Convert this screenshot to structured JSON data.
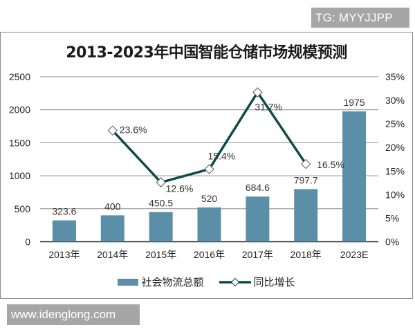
{
  "watermarks": {
    "top_right": "TG: MYYJJPP",
    "bottom_left": "www.idenglong.com"
  },
  "colors": {
    "bar": "#5b8fa8",
    "line": "#0f4a4a",
    "grid": "#8c8c8c",
    "badge_bg": "#a6a6a6"
  },
  "chart_data": {
    "type": "bar+line",
    "title": "2013-2023年中国智能仓储市场规模预测",
    "categories": [
      "2013年",
      "2014年",
      "2015年",
      "2016年",
      "2017年",
      "2018年",
      "2023E"
    ],
    "series": [
      {
        "name": "社会物流总额",
        "type": "bar",
        "axis": "left",
        "values": [
          323.6,
          400,
          450.5,
          520,
          684.6,
          797.7,
          1975
        ],
        "labels": [
          "323.6",
          "400",
          "450.5",
          "520",
          "684.6",
          "797.7",
          "1975"
        ]
      },
      {
        "name": "同比增长",
        "type": "line",
        "axis": "right",
        "marker": "diamond",
        "values": [
          null,
          23.6,
          12.6,
          15.4,
          31.7,
          16.5,
          null
        ],
        "labels": [
          "",
          "23.6%",
          "12.6%",
          "15.4%",
          "31.7%",
          "16.5%",
          ""
        ]
      }
    ],
    "left_axis": {
      "ylim": [
        0,
        2500
      ],
      "ticks": [
        "0",
        "500",
        "1000",
        "1500",
        "2000",
        "2500"
      ]
    },
    "right_axis": {
      "ylim": [
        0,
        35
      ],
      "ticks": [
        "0%",
        "5%",
        "10%",
        "15%",
        "20%",
        "25%",
        "30%",
        "35%"
      ]
    },
    "xlabel": "",
    "ylabel": "",
    "grid": true,
    "legend_position": "bottom",
    "legend": [
      "社会物流总额",
      "同比增长"
    ]
  }
}
